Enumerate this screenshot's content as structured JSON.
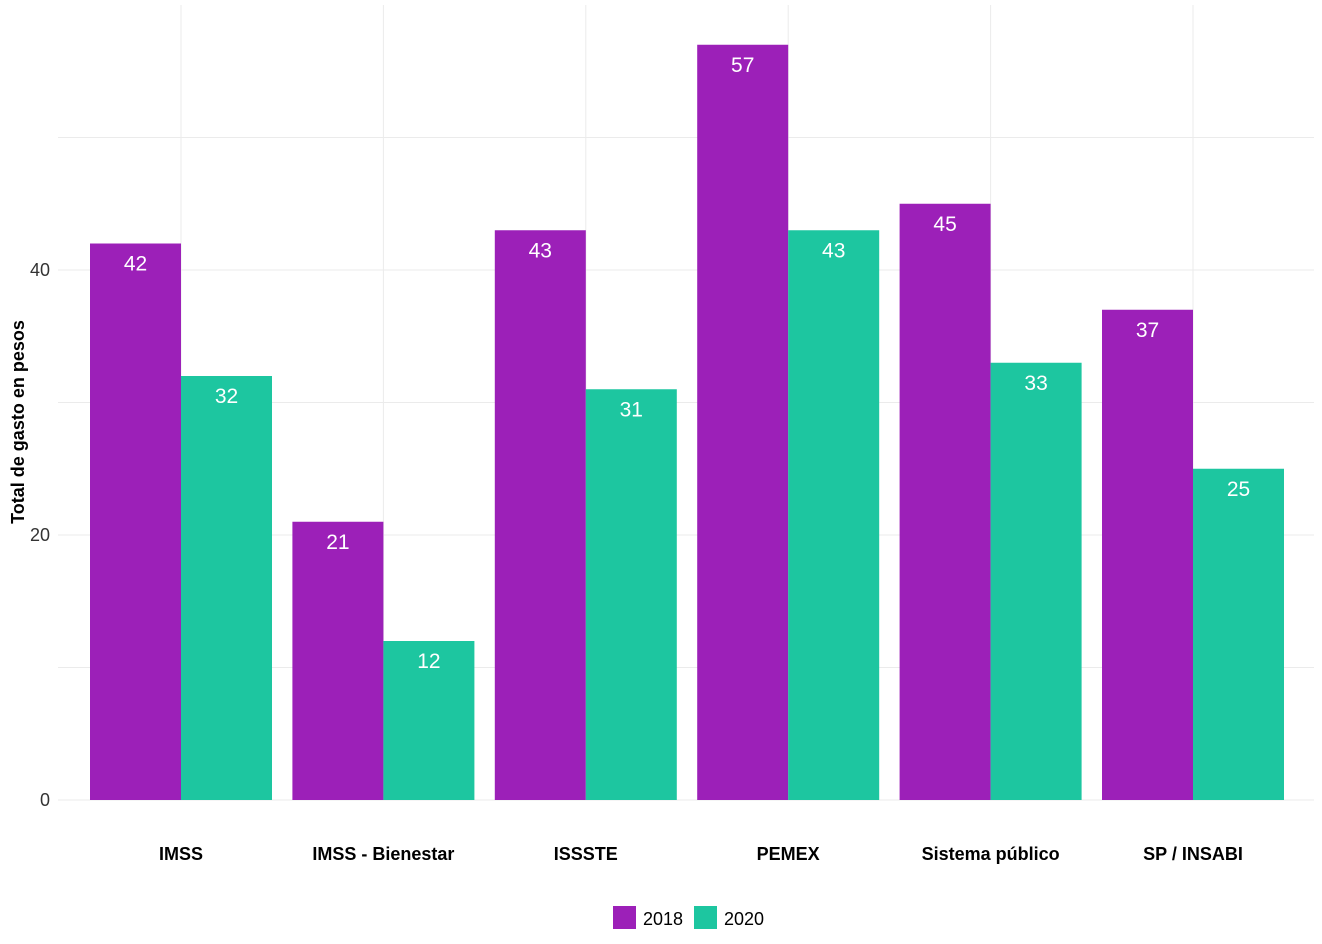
{
  "chart_data": {
    "type": "bar",
    "title": "",
    "xlabel": "",
    "ylabel": "Total de gasto en pesos",
    "categories": [
      "IMSS",
      "IMSS - Bienestar",
      "ISSSTE",
      "PEMEX",
      "Sistema público",
      "SP / INSABI"
    ],
    "series": [
      {
        "name": "2018",
        "color": "#9C20B8",
        "values": [
          42,
          21,
          43,
          57,
          45,
          37
        ]
      },
      {
        "name": "2020",
        "color": "#1DC6A0",
        "values": [
          32,
          12,
          31,
          43,
          33,
          25
        ]
      }
    ],
    "ylim": [
      0,
      60
    ],
    "yticks": [
      0,
      20,
      40
    ],
    "ygrid_minor": [
      10,
      30,
      50
    ],
    "grid": true,
    "legend_position": "bottom",
    "data_labels": true
  }
}
